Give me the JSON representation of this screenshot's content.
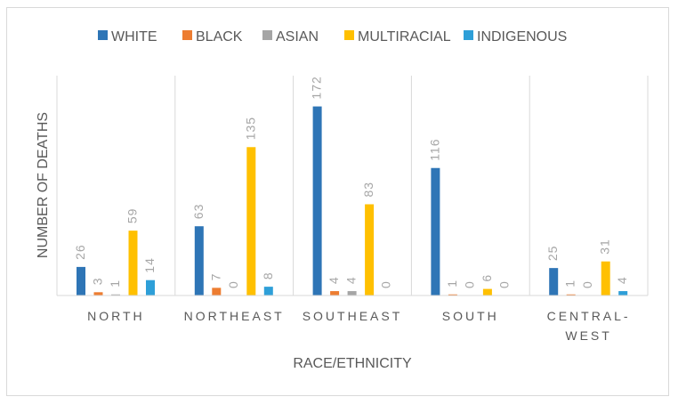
{
  "chart_data": {
    "type": "bar",
    "title": "",
    "xlabel": "RACE/ETHNICITY",
    "ylabel": "NUMBER OF DEATHS",
    "categories": [
      "NORTH",
      "NORTHEAST",
      "SOUTHEAST",
      "SOUTH",
      "CENTRAL-WEST"
    ],
    "series": [
      {
        "name": "WHITE",
        "color": "#2e75b6",
        "values": [
          26,
          63,
          172,
          116,
          25
        ]
      },
      {
        "name": "BLACK",
        "color": "#ed7d31",
        "values": [
          3,
          7,
          4,
          1,
          1
        ]
      },
      {
        "name": "ASIAN",
        "color": "#a5a5a5",
        "values": [
          1,
          0,
          4,
          0,
          0
        ]
      },
      {
        "name": "MULTIRACIAL",
        "color": "#ffc000",
        "values": [
          59,
          135,
          83,
          6,
          31
        ]
      },
      {
        "name": "INDIGENOUS",
        "color": "#2e9fd8",
        "values": [
          14,
          8,
          0,
          0,
          4
        ]
      }
    ],
    "ylim": [
      0,
      200
    ],
    "grid": false,
    "category_dividers": true,
    "legend_position": "top",
    "data_labels": true
  }
}
